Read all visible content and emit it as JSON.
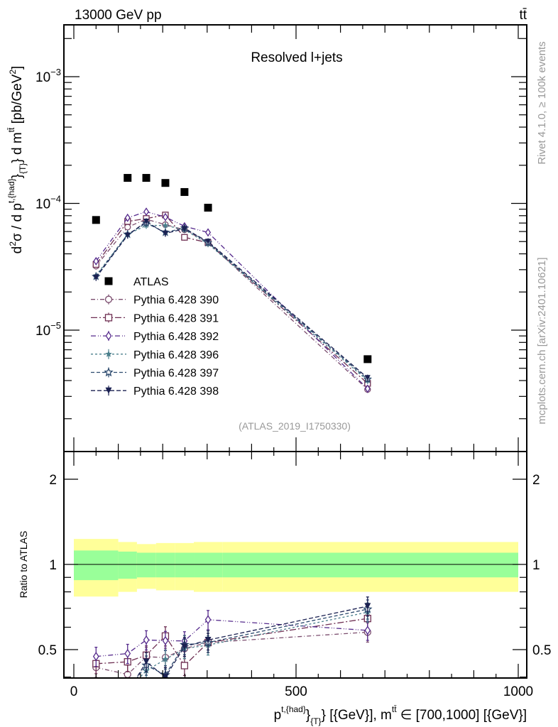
{
  "header": {
    "left": "13000 GeV pp",
    "right": "tt̄",
    "side_top": "Rivet 4.1.0, ≥ 100k events",
    "side_bottom": "mcplots.cern.ch [arXiv:2401.10621]"
  },
  "chart_data": {
    "type": "scatter",
    "title": "Resolved l+jets",
    "analysis_label": "(ATLAS_2019_I1750330)",
    "ylabel_parts": {
      "a": "d",
      "a_sup": "2",
      "b": "σ / d p",
      "b_sup": "t,{had}",
      "c": "}",
      "c_sub": "{T}",
      "d": "} d m",
      "d_sup": "tt̄",
      "e": " [pb/GeV",
      "e_sup": "2",
      "f": "]"
    },
    "xlabel_parts": {
      "a": "p",
      "a_sup": "t,{had}",
      "b": "}",
      "b_sub": "{T}",
      "c": "} [{GeV}], m",
      "c_sup": "tt̄",
      "d": " ∈ [700,1000] [{GeV}]"
    },
    "ratio_ylabel": "Ratio to ATLAS",
    "xlim": [
      0,
      1000
    ],
    "ylim": [
      1.12e-06,
      0.00257
    ],
    "yscale": "log",
    "ratio_ylim": [
      0.397,
      2.49
    ],
    "ratio_yscale": "log",
    "x_tick_labels": [
      "0",
      "500",
      "1000"
    ],
    "y_tick_labels": [
      {
        "base": "10",
        "exp": "−3"
      },
      {
        "base": "10",
        "exp": "−4"
      },
      {
        "base": "10",
        "exp": "−5"
      }
    ],
    "ratio_tick_labels": [
      "0.5",
      "1",
      "2"
    ],
    "x": [
      50,
      121,
      163,
      206,
      249,
      302,
      661
    ],
    "bin_edges": [
      0,
      100,
      142,
      185,
      228,
      270,
      335,
      1000
    ],
    "data": {
      "name": "ATLAS",
      "values": [
        7.4e-05,
        0.000159,
        0.000159,
        0.000145,
        0.000123,
        9.25e-05,
        5.9e-06
      ],
      "band_inner": [
        0.12,
        0.11,
        0.1,
        0.1,
        0.1,
        0.1,
        0.1
      ],
      "band_outer": [
        0.23,
        0.2,
        0.18,
        0.19,
        0.19,
        0.2,
        0.2
      ]
    },
    "series": [
      {
        "name": "Pythia 6.428 390",
        "color": "#7b4d6e",
        "marker": "circle-open",
        "dash": "6,3,1,3",
        "rel_err": 0.06,
        "values": [
          3.2e-05,
          6.5e-05,
          7.5e-05,
          6.8e-05,
          6.2e-05,
          4.9e-05,
          3.4e-06
        ]
      },
      {
        "name": "Pythia 6.428 391",
        "color": "#6e2f52",
        "marker": "square-open",
        "dash": "9,3,2,3",
        "rel_err": 0.06,
        "values": [
          3.3e-05,
          7.2e-05,
          7.6e-05,
          8.1e-05,
          5.4e-05,
          4.9e-05,
          3.8e-06
        ]
      },
      {
        "name": "Pythia 6.428 392",
        "color": "#552a8c",
        "marker": "diamond-open",
        "dash": "7,3,1,2,1,3",
        "rel_err": 0.06,
        "values": [
          3.5e-05,
          7.7e-05,
          8.6e-05,
          7.8e-05,
          6.6e-05,
          5.9e-05,
          3.45e-06
        ]
      },
      {
        "name": "Pythia 6.428 396",
        "color": "#4a7f8c",
        "marker": "star-filled",
        "dash": "3,3",
        "rel_err": 0.06,
        "values": [
          2.7e-05,
          5.7e-05,
          6.7e-05,
          6.7e-05,
          6.2e-05,
          4.8e-05,
          4e-06
        ]
      },
      {
        "name": "Pythia 6.428 397",
        "color": "#2c4a6e",
        "marker": "star-open",
        "dash": "5,3",
        "rel_err": 0.06,
        "values": [
          2.65e-05,
          5.7e-05,
          7e-05,
          5.9e-05,
          6.4e-05,
          4.9e-05,
          4.1e-06
        ]
      },
      {
        "name": "Pythia 6.428 398",
        "color": "#1b2152",
        "marker": "triangle-down-filled",
        "dash": "6,3",
        "rel_err": 0.06,
        "values": [
          2.6e-05,
          5.6e-05,
          7.2e-05,
          5.8e-05,
          6.3e-05,
          5e-05,
          4.2e-06
        ]
      }
    ],
    "colors": {
      "band_inner": "#99ff99",
      "band_outer": "#ffff99",
      "data": "#000000"
    },
    "legend_position": "center-left"
  }
}
